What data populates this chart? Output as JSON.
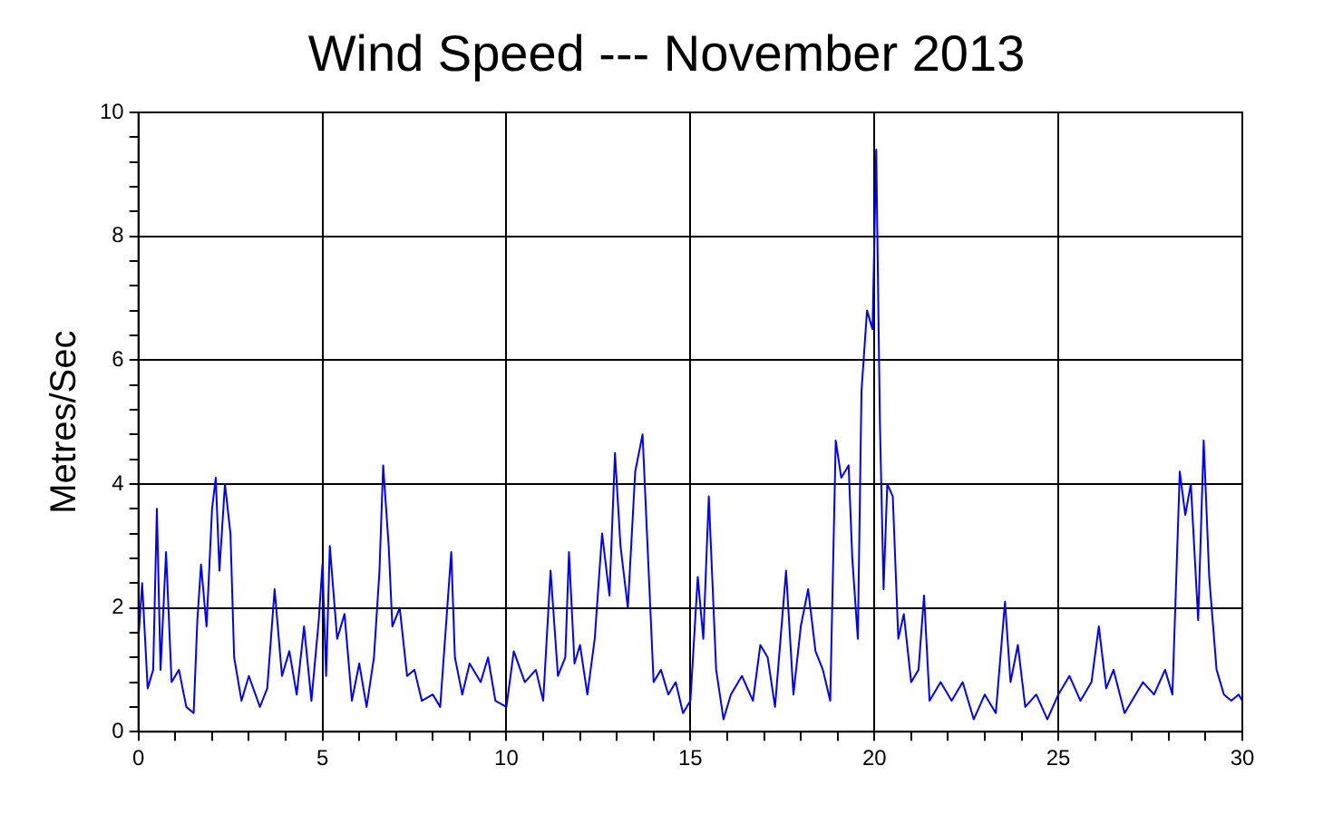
{
  "chart_data": {
    "type": "line",
    "title": "Wind Speed --- November 2013",
    "ylabel": "Metres/Sec",
    "xlim": [
      0,
      30
    ],
    "xticks": [
      0,
      {
        "value": 1,
        "label": null
      },
      {
        "value": 2,
        "label": null
      },
      {
        "value": 3,
        "label": null
      },
      {
        "value": 4,
        "label": null
      },
      5,
      {
        "value": 6,
        "label": null
      },
      {
        "value": 7,
        "label": null
      },
      {
        "value": 8,
        "label": null
      },
      {
        "value": 9,
        "label": null
      },
      10,
      {
        "value": 11,
        "label": null
      },
      {
        "value": 12,
        "label": null
      },
      {
        "value": 13,
        "label": null
      },
      {
        "value": 14,
        "label": null
      },
      15,
      {
        "value": 16,
        "label": null
      },
      {
        "value": 17,
        "label": null
      },
      {
        "value": 18,
        "label": null
      },
      {
        "value": 19,
        "label": null
      },
      20,
      {
        "value": 21,
        "label": null
      },
      {
        "value": 22,
        "label": null
      },
      {
        "value": 23,
        "label": null
      },
      {
        "value": 24,
        "label": null
      },
      25,
      {
        "value": 26,
        "label": null
      },
      {
        "value": 27,
        "label": null
      },
      {
        "value": 28,
        "label": null
      },
      {
        "value": 29,
        "label": null
      },
      30
    ],
    "ylim": [
      0,
      10
    ],
    "yticks": [
      0,
      {
        "value": 0.4,
        "label": null
      },
      {
        "value": 0.8,
        "label": null
      },
      {
        "value": 1.2,
        "label": null
      },
      {
        "value": 1.6,
        "label": null
      },
      2,
      {
        "value": 2.4,
        "label": null
      },
      {
        "value": 2.8,
        "label": null
      },
      {
        "value": 3.2,
        "label": null
      },
      {
        "value": 3.6,
        "label": null
      },
      4,
      {
        "value": 4.4,
        "label": null
      },
      {
        "value": 4.8,
        "label": null
      },
      {
        "value": 5.2,
        "label": null
      },
      {
        "value": 5.6,
        "label": null
      },
      6,
      {
        "value": 6.4,
        "label": null
      },
      {
        "value": 6.8,
        "label": null
      },
      {
        "value": 7.2,
        "label": null
      },
      {
        "value": 7.6,
        "label": null
      },
      8,
      {
        "value": 8.4,
        "label": null
      },
      {
        "value": 8.8,
        "label": null
      },
      {
        "value": 9.2,
        "label": null
      },
      {
        "value": 9.6,
        "label": null
      },
      10
    ],
    "grid": true,
    "legend": false,
    "marker": "none",
    "line_style": "solid",
    "x": [
      0,
      0.1,
      0.25,
      0.4,
      0.5,
      0.6,
      0.75,
      0.9,
      1.1,
      1.3,
      1.5,
      1.6,
      1.7,
      1.85,
      2.0,
      2.1,
      2.2,
      2.35,
      2.5,
      2.6,
      2.8,
      3.0,
      3.3,
      3.5,
      3.7,
      3.9,
      4.1,
      4.3,
      4.5,
      4.7,
      4.9,
      5.0,
      5.1,
      5.2,
      5.4,
      5.6,
      5.8,
      6.0,
      6.2,
      6.4,
      6.55,
      6.65,
      6.8,
      6.9,
      7.1,
      7.3,
      7.5,
      7.7,
      8.0,
      8.2,
      8.5,
      8.6,
      8.8,
      9.0,
      9.3,
      9.5,
      9.7,
      10.0,
      10.2,
      10.5,
      10.8,
      11.0,
      11.2,
      11.4,
      11.6,
      11.7,
      11.85,
      12.0,
      12.2,
      12.4,
      12.6,
      12.8,
      12.95,
      13.1,
      13.3,
      13.5,
      13.7,
      13.85,
      14.0,
      14.2,
      14.4,
      14.6,
      14.8,
      15.0,
      15.2,
      15.35,
      15.5,
      15.7,
      15.9,
      16.1,
      16.4,
      16.7,
      16.9,
      17.1,
      17.3,
      17.6,
      17.8,
      18.0,
      18.2,
      18.4,
      18.6,
      18.8,
      18.95,
      19.1,
      19.3,
      19.4,
      19.55,
      19.65,
      19.8,
      19.95,
      20.05,
      20.15,
      20.25,
      20.35,
      20.5,
      20.65,
      20.8,
      21.0,
      21.2,
      21.35,
      21.5,
      21.8,
      22.1,
      22.4,
      22.7,
      23.0,
      23.3,
      23.55,
      23.7,
      23.9,
      24.1,
      24.4,
      24.7,
      25.0,
      25.3,
      25.6,
      25.9,
      26.1,
      26.3,
      26.5,
      26.8,
      27.0,
      27.3,
      27.6,
      27.9,
      28.1,
      28.3,
      28.45,
      28.6,
      28.8,
      28.95,
      29.1,
      29.3,
      29.5,
      29.7,
      29.9,
      30.0
    ],
    "series": [
      {
        "color": "#0000ff",
        "values": [
          1.5,
          2.4,
          0.7,
          1.0,
          3.6,
          1.0,
          2.9,
          0.8,
          1.0,
          0.4,
          0.3,
          1.8,
          2.7,
          1.7,
          3.6,
          4.1,
          2.6,
          4.0,
          3.2,
          1.2,
          0.5,
          0.9,
          0.4,
          0.7,
          2.3,
          0.9,
          1.3,
          0.6,
          1.7,
          0.5,
          1.8,
          2.7,
          0.9,
          3.0,
          1.5,
          1.9,
          0.5,
          1.1,
          0.4,
          1.2,
          2.6,
          4.3,
          3.0,
          1.7,
          2.0,
          0.9,
          1.0,
          0.5,
          0.6,
          0.4,
          2.9,
          1.2,
          0.6,
          1.1,
          0.8,
          1.2,
          0.5,
          0.4,
          1.3,
          0.8,
          1.0,
          0.5,
          2.6,
          0.9,
          1.2,
          2.9,
          1.1,
          1.4,
          0.6,
          1.5,
          3.2,
          2.2,
          4.5,
          3.0,
          2.0,
          4.2,
          4.8,
          2.8,
          0.8,
          1.0,
          0.6,
          0.8,
          0.3,
          0.5,
          2.5,
          1.5,
          3.8,
          1.0,
          0.2,
          0.6,
          0.9,
          0.5,
          1.4,
          1.2,
          0.4,
          2.6,
          0.6,
          1.7,
          2.3,
          1.3,
          1.0,
          0.5,
          4.7,
          4.1,
          4.3,
          2.8,
          1.5,
          5.5,
          6.8,
          6.5,
          9.4,
          5.0,
          2.3,
          4.0,
          3.8,
          1.5,
          1.9,
          0.8,
          1.0,
          2.2,
          0.5,
          0.8,
          0.5,
          0.8,
          0.2,
          0.6,
          0.3,
          2.1,
          0.8,
          1.4,
          0.4,
          0.6,
          0.2,
          0.6,
          0.9,
          0.5,
          0.8,
          1.7,
          0.7,
          1.0,
          0.3,
          0.5,
          0.8,
          0.6,
          1.0,
          0.6,
          4.2,
          3.5,
          4.0,
          1.8,
          4.7,
          2.5,
          1.0,
          0.6,
          0.5,
          0.6,
          0.5
        ]
      }
    ]
  }
}
